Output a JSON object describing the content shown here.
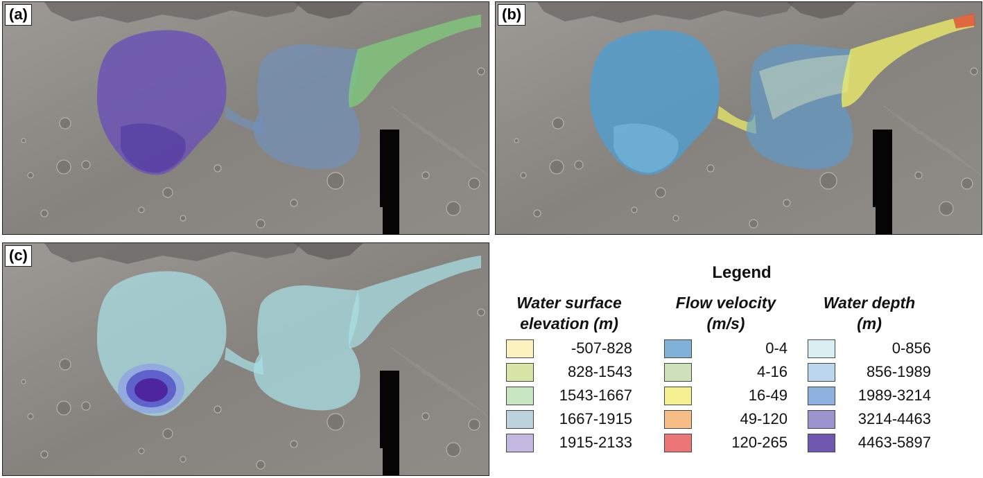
{
  "panels": [
    {
      "label": "(a)"
    },
    {
      "label": "(b)"
    },
    {
      "label": "(c)"
    }
  ],
  "legend": {
    "title": "Legend",
    "columns": [
      {
        "heading_line1": "Water surface",
        "heading_line2": "elevation (m)",
        "items": [
          {
            "label": "-507-828",
            "color": "#fbf2c0"
          },
          {
            "label": "828-1543",
            "color": "#d7e6a6"
          },
          {
            "label": "1543-1667",
            "color": "#c8e6c2"
          },
          {
            "label": "1667-1915",
            "color": "#bcd2dc"
          },
          {
            "label": "1915-2133",
            "color": "#c3b8df"
          }
        ]
      },
      {
        "heading_line1": "Flow velocity",
        "heading_line2": "(m/s)",
        "items": [
          {
            "label": "0-4",
            "color": "#7fb2d6"
          },
          {
            "label": "4-16",
            "color": "#cfe0bd"
          },
          {
            "label": "16-49",
            "color": "#f5f091"
          },
          {
            "label": "49-120",
            "color": "#f7bd87"
          },
          {
            "label": "120-265",
            "color": "#ec7576"
          }
        ]
      },
      {
        "heading_line1": "Water depth",
        "heading_line2": "(m)",
        "items": [
          {
            "label": "0-856",
            "color": "#d9eef0"
          },
          {
            "label": "856-1989",
            "color": "#bcd6ee"
          },
          {
            "label": "1989-3214",
            "color": "#8fb1df"
          },
          {
            "label": "3214-4463",
            "color": "#9a94cf"
          },
          {
            "label": "4463-5897",
            "color": "#6f58ad"
          }
        ]
      }
    ]
  },
  "layer_colors": {
    "a_crater": "#6a52b6",
    "a_basin": "#6f93c0",
    "a_channel": "#7fd17a",
    "b_crater": "#4f9fd2",
    "b_basin": "#5a9fd4",
    "b_channel": "#eaea6a",
    "b_hot": "#e0553a",
    "c_fill": "#a9e0e6",
    "c_deep": "#8fa5e0",
    "c_deeper": "#5a5ac8",
    "c_deepest": "#4a1f9a"
  }
}
